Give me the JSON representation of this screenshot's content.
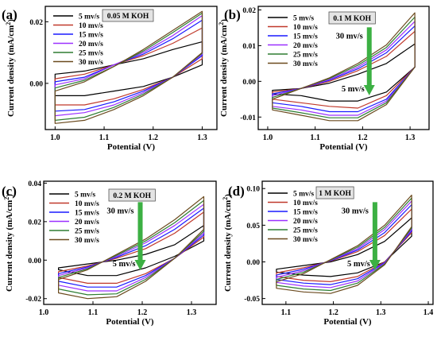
{
  "figure": {
    "panels": [
      {
        "label": "(a)",
        "box_label": "0.05 M KOH",
        "xlabel": "Potential (V)",
        "ylabel": "Current density (mA/cm",
        "ylabel_sup": "2",
        "ylabel_tail": ")",
        "arrow": null
      },
      {
        "label": "(b)",
        "box_label": "0.1 M KOH",
        "xlabel": "Potential (V)",
        "ylabel": "Current density (mA/cm",
        "ylabel_sup": "2",
        "ylabel_tail": ")",
        "arrow": {
          "top_label": "30 mv/s",
          "bottom_label": "5 mv/s"
        }
      },
      {
        "label": "(c)",
        "box_label": "0.2 M KOH",
        "xlabel": "Potential (V)",
        "ylabel": "Current density (mA/cm",
        "ylabel_sup": "2",
        "ylabel_tail": ")",
        "arrow": {
          "top_label": "30 mv/s",
          "bottom_label": "5 mv/s"
        }
      },
      {
        "label": "(d)",
        "box_label": "1 M KOH",
        "xlabel": "Potential (V)",
        "ylabel": "Current density (mA/cm",
        "ylabel_sup": "2",
        "ylabel_tail": ")",
        "arrow": {
          "top_label": "30 mv/s",
          "bottom_label": "5 mv/s"
        }
      }
    ],
    "series_colors": [
      "#000000",
      "#c0392b",
      "#1a1aff",
      "#9b30ff",
      "#2e7d32",
      "#6b4a1e"
    ],
    "arrow_color": "#3cb043"
  },
  "chart_data": [
    {
      "type": "line",
      "title": "",
      "xlabel": "Potential (V)",
      "ylabel": "Current density (mA/cm2)",
      "xlim": [
        0.98,
        1.33
      ],
      "ylim": [
        -0.015,
        0.025
      ],
      "xticks": [
        "1.0",
        "1.1",
        "1.2",
        "1.3"
      ],
      "yticks": [
        "0.00",
        "0.02"
      ],
      "ytick_values": [
        0.0,
        0.02
      ],
      "xtick_values": [
        1.0,
        1.1,
        1.2,
        1.3
      ],
      "legend_position": "top-left",
      "series": [
        {
          "name": "5 mv/s",
          "x_start": 1.0,
          "x_end": 1.3,
          "upper": [
            0.003,
            0.004,
            0.006,
            0.008,
            0.011,
            0.0135
          ],
          "lower": [
            -0.004,
            -0.004,
            -0.0025,
            -0.001,
            0.002,
            0.006
          ]
        },
        {
          "name": "10 mv/s",
          "x_start": 1.0,
          "x_end": 1.3,
          "upper": [
            0.0015,
            0.003,
            0.006,
            0.009,
            0.013,
            0.018
          ],
          "lower": [
            -0.007,
            -0.007,
            -0.005,
            -0.002,
            0.002,
            0.008
          ]
        },
        {
          "name": "15 mv/s",
          "x_start": 1.0,
          "x_end": 1.3,
          "upper": [
            0.0005,
            0.002,
            0.006,
            0.0095,
            0.0145,
            0.0205
          ],
          "lower": [
            -0.009,
            -0.0085,
            -0.006,
            -0.0025,
            0.002,
            0.009
          ]
        },
        {
          "name": "20 mv/s",
          "x_start": 1.0,
          "x_end": 1.3,
          "upper": [
            -0.0005,
            0.0015,
            0.006,
            0.01,
            0.0155,
            0.022
          ],
          "lower": [
            -0.0105,
            -0.0095,
            -0.007,
            -0.003,
            0.002,
            0.0095
          ]
        },
        {
          "name": "25 mv/s",
          "x_start": 1.0,
          "x_end": 1.3,
          "upper": [
            -0.0015,
            0.001,
            0.0055,
            0.0105,
            0.0165,
            0.0228
          ],
          "lower": [
            -0.012,
            -0.011,
            -0.0078,
            -0.0035,
            0.002,
            0.0098
          ]
        },
        {
          "name": "30 mv/s",
          "x_start": 1.0,
          "x_end": 1.3,
          "upper": [
            -0.0025,
            0.0005,
            0.0055,
            0.011,
            0.0172,
            0.0234
          ],
          "lower": [
            -0.013,
            -0.012,
            -0.0085,
            -0.004,
            0.002,
            0.01
          ]
        }
      ]
    },
    {
      "type": "line",
      "title": "",
      "xlabel": "Potential (V)",
      "ylabel": "Current density (mA/cm2)",
      "xlim": [
        0.98,
        1.34
      ],
      "ylim": [
        -0.0135,
        0.021
      ],
      "xticks": [
        "1.0",
        "1.1",
        "1.2",
        "1.3"
      ],
      "yticks": [
        "-0.01",
        "0.00",
        "0.01",
        "0.02"
      ],
      "ytick_values": [
        -0.01,
        0.0,
        0.01,
        0.02
      ],
      "xtick_values": [
        1.0,
        1.1,
        1.2,
        1.3
      ],
      "legend_position": "top-left",
      "series": [
        {
          "name": "5 mv/s",
          "x_start": 1.01,
          "x_end": 1.31,
          "upper": [
            -0.0025,
            -0.002,
            -0.0005,
            0.002,
            0.005,
            0.0105
          ],
          "lower": [
            -0.0035,
            -0.004,
            -0.0055,
            -0.0055,
            -0.003,
            0.004
          ]
        },
        {
          "name": "10 mv/s",
          "x_start": 1.01,
          "x_end": 1.31,
          "upper": [
            -0.003,
            -0.002,
            0.0,
            0.003,
            0.007,
            0.014
          ],
          "lower": [
            -0.005,
            -0.006,
            -0.007,
            -0.0075,
            -0.004,
            0.004
          ]
        },
        {
          "name": "15 mv/s",
          "x_start": 1.01,
          "x_end": 1.31,
          "upper": [
            -0.0035,
            -0.002,
            0.0003,
            0.0035,
            0.008,
            0.0155
          ],
          "lower": [
            -0.006,
            -0.007,
            -0.0085,
            -0.0085,
            -0.005,
            0.004
          ]
        },
        {
          "name": "20 mv/s",
          "x_start": 1.01,
          "x_end": 1.31,
          "upper": [
            -0.004,
            -0.002,
            0.0005,
            0.004,
            0.0088,
            0.0168
          ],
          "lower": [
            -0.007,
            -0.008,
            -0.0095,
            -0.0095,
            -0.0055,
            0.004
          ]
        },
        {
          "name": "25 mv/s",
          "x_start": 1.01,
          "x_end": 1.31,
          "upper": [
            -0.0045,
            -0.002,
            0.0008,
            0.0045,
            0.0095,
            0.018
          ],
          "lower": [
            -0.0075,
            -0.0088,
            -0.0102,
            -0.0102,
            -0.006,
            0.004
          ]
        },
        {
          "name": "30 mv/s",
          "x_start": 1.01,
          "x_end": 1.31,
          "upper": [
            -0.005,
            -0.002,
            0.001,
            0.005,
            0.0102,
            0.0192
          ],
          "lower": [
            -0.008,
            -0.0095,
            -0.011,
            -0.011,
            -0.0065,
            0.004
          ]
        }
      ]
    },
    {
      "type": "line",
      "title": "",
      "xlabel": "Potential (V)",
      "ylabel": "Current density (mA/cm2)",
      "xlim": [
        1.0,
        1.35
      ],
      "ylim": [
        -0.023,
        0.041
      ],
      "xticks": [
        "1.0",
        "1.1",
        "1.2",
        "1.3"
      ],
      "yticks": [
        "-0.02",
        "0.00",
        "0.02",
        "0.04"
      ],
      "ytick_values": [
        -0.02,
        0.0,
        0.02,
        0.04
      ],
      "xtick_values": [
        1.0,
        1.1,
        1.2,
        1.3
      ],
      "legend_position": "top-left",
      "series": [
        {
          "name": "5 mv/s",
          "x_start": 1.03,
          "x_end": 1.325,
          "upper": [
            -0.004,
            -0.002,
            0.0,
            0.003,
            0.008,
            0.018
          ],
          "lower": [
            -0.005,
            -0.008,
            -0.008,
            -0.004,
            0.002,
            0.01
          ]
        },
        {
          "name": "10 mv/s",
          "x_start": 1.03,
          "x_end": 1.325,
          "upper": [
            -0.006,
            -0.003,
            0.001,
            0.006,
            0.014,
            0.025
          ],
          "lower": [
            -0.009,
            -0.012,
            -0.012,
            -0.007,
            0.001,
            0.012
          ]
        },
        {
          "name": "15 mv/s",
          "x_start": 1.03,
          "x_end": 1.325,
          "upper": [
            -0.007,
            -0.0035,
            0.0015,
            0.0075,
            0.016,
            0.027
          ],
          "lower": [
            -0.011,
            -0.014,
            -0.014,
            -0.008,
            0.001,
            0.013
          ]
        },
        {
          "name": "20 mv/s",
          "x_start": 1.03,
          "x_end": 1.325,
          "upper": [
            -0.008,
            -0.004,
            0.002,
            0.009,
            0.018,
            0.029
          ],
          "lower": [
            -0.013,
            -0.016,
            -0.016,
            -0.009,
            0.001,
            0.014
          ]
        },
        {
          "name": "25 mv/s",
          "x_start": 1.03,
          "x_end": 1.325,
          "upper": [
            -0.009,
            -0.0045,
            0.0025,
            0.01,
            0.0195,
            0.031
          ],
          "lower": [
            -0.015,
            -0.018,
            -0.0175,
            -0.01,
            0.001,
            0.015
          ]
        },
        {
          "name": "30 mv/s",
          "x_start": 1.03,
          "x_end": 1.325,
          "upper": [
            -0.01,
            -0.005,
            0.003,
            0.011,
            0.021,
            0.033
          ],
          "lower": [
            -0.017,
            -0.02,
            -0.019,
            -0.011,
            0.001,
            0.016
          ]
        }
      ]
    },
    {
      "type": "line",
      "title": "",
      "xlabel": "Potential (V)",
      "ylabel": "Current density (mA/cm2)",
      "xlim": [
        1.05,
        1.41
      ],
      "ylim": [
        -0.058,
        0.11
      ],
      "xticks": [
        "1.1",
        "1.2",
        "1.3",
        "1.4"
      ],
      "yticks": [
        "-0.05",
        "0.00",
        "0.05",
        "0.10"
      ],
      "ytick_values": [
        -0.05,
        0.0,
        0.05,
        0.1
      ],
      "xtick_values": [
        1.1,
        1.2,
        1.3,
        1.4
      ],
      "legend_position": "top-left",
      "series": [
        {
          "name": "5 mv/s",
          "x_start": 1.08,
          "x_end": 1.365,
          "upper": [
            -0.01,
            -0.005,
            0.0,
            0.01,
            0.028,
            0.06
          ],
          "lower": [
            -0.014,
            -0.018,
            -0.02,
            -0.015,
            0.0,
            0.035
          ]
        },
        {
          "name": "10 mv/s",
          "x_start": 1.08,
          "x_end": 1.365,
          "upper": [
            -0.015,
            -0.008,
            0.001,
            0.014,
            0.036,
            0.072
          ],
          "lower": [
            -0.02,
            -0.025,
            -0.027,
            -0.02,
            0.0,
            0.04
          ]
        },
        {
          "name": "15 mv/s",
          "x_start": 1.08,
          "x_end": 1.365,
          "upper": [
            -0.018,
            -0.01,
            0.0015,
            0.016,
            0.04,
            0.078
          ],
          "lower": [
            -0.024,
            -0.029,
            -0.031,
            -0.023,
            -0.001,
            0.042
          ]
        },
        {
          "name": "20 mv/s",
          "x_start": 1.08,
          "x_end": 1.365,
          "upper": [
            -0.021,
            -0.012,
            0.002,
            0.018,
            0.044,
            0.083
          ],
          "lower": [
            -0.028,
            -0.033,
            -0.035,
            -0.026,
            -0.002,
            0.044
          ]
        },
        {
          "name": "25 mv/s",
          "x_start": 1.08,
          "x_end": 1.365,
          "upper": [
            -0.024,
            -0.014,
            0.0025,
            0.02,
            0.047,
            0.087
          ],
          "lower": [
            -0.032,
            -0.037,
            -0.039,
            -0.029,
            -0.003,
            0.046
          ]
        },
        {
          "name": "30 mv/s",
          "x_start": 1.08,
          "x_end": 1.365,
          "upper": [
            -0.027,
            -0.016,
            0.003,
            0.022,
            0.05,
            0.091
          ],
          "lower": [
            -0.036,
            -0.041,
            -0.043,
            -0.032,
            -0.004,
            0.048
          ]
        }
      ]
    }
  ]
}
